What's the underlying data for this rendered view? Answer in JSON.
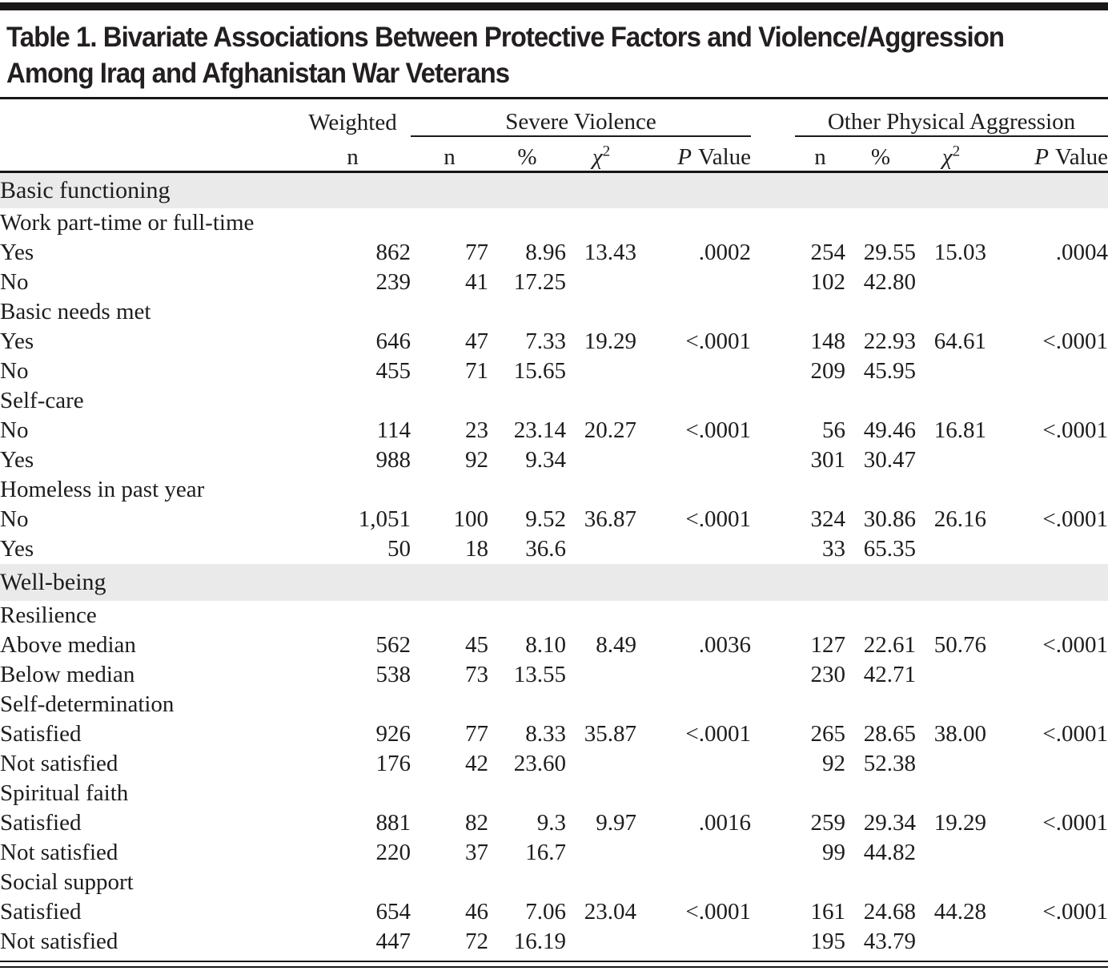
{
  "title": {
    "line1": "Table 1. Bivariate Associations Between Protective Factors and Violence/Aggression",
    "line2": "Among Iraq and Afghanistan War Veterans"
  },
  "header": {
    "weighted_label": "Weighted",
    "weighted_sub": "n",
    "groups": [
      {
        "label": "Severe Violence"
      },
      {
        "label": "Other Physical Aggression"
      }
    ],
    "sub_n": "n",
    "sub_pct": "%",
    "sub_chi": "χ",
    "sub_chi_sup": "2",
    "sub_p_italic": "P",
    "sub_p_rest": "Value"
  },
  "colors": {
    "section_band": "#eaeaea",
    "rule": "#1a1a1a",
    "text": "#1d1d1d"
  },
  "sections": [
    {
      "label": "Basic functioning",
      "rows": [
        {
          "label": "Work part-time or full-time",
          "indent": false,
          "cells": [
            "",
            "",
            "",
            "",
            "",
            "",
            "",
            "",
            ""
          ]
        },
        {
          "label": "Yes",
          "indent": true,
          "cells": [
            "862",
            "77",
            "8.96",
            "13.43",
            ".0002",
            "254",
            "29.55",
            "15.03",
            ".0004"
          ]
        },
        {
          "label": "No",
          "indent": true,
          "cells": [
            "239",
            "41",
            "17.25",
            "",
            "",
            "102",
            "42.80",
            "",
            ""
          ]
        },
        {
          "label": "Basic needs met",
          "indent": false,
          "cells": [
            "",
            "",
            "",
            "",
            "",
            "",
            "",
            "",
            ""
          ]
        },
        {
          "label": "Yes",
          "indent": true,
          "cells": [
            "646",
            "47",
            "7.33",
            "19.29",
            "<.0001",
            "148",
            "22.93",
            "64.61",
            "<.0001"
          ]
        },
        {
          "label": "No",
          "indent": true,
          "cells": [
            "455",
            "71",
            "15.65",
            "",
            "",
            "209",
            "45.95",
            "",
            ""
          ]
        },
        {
          "label": "Self-care",
          "indent": false,
          "cells": [
            "",
            "",
            "",
            "",
            "",
            "",
            "",
            "",
            ""
          ]
        },
        {
          "label": "No",
          "indent": true,
          "cells": [
            "114",
            "23",
            "23.14",
            "20.27",
            "<.0001",
            "56",
            "49.46",
            "16.81",
            "<.0001"
          ]
        },
        {
          "label": "Yes",
          "indent": true,
          "cells": [
            "988",
            "92",
            "9.34",
            "",
            "",
            "301",
            "30.47",
            "",
            ""
          ]
        },
        {
          "label": "Homeless in past year",
          "indent": false,
          "cells": [
            "",
            "",
            "",
            "",
            "",
            "",
            "",
            "",
            ""
          ]
        },
        {
          "label": "No",
          "indent": true,
          "cells": [
            "1,051",
            "100",
            "9.52",
            "36.87",
            "<.0001",
            "324",
            "30.86",
            "26.16",
            "<.0001"
          ]
        },
        {
          "label": "Yes",
          "indent": true,
          "cells": [
            "50",
            "18",
            "36.6",
            "",
            "",
            "33",
            "65.35",
            "",
            ""
          ]
        }
      ]
    },
    {
      "label": "Well-being",
      "rows": [
        {
          "label": "Resilience",
          "indent": false,
          "cells": [
            "",
            "",
            "",
            "",
            "",
            "",
            "",
            "",
            ""
          ]
        },
        {
          "label": "Above median",
          "indent": true,
          "cells": [
            "562",
            "45",
            "8.10",
            "8.49",
            ".0036",
            "127",
            "22.61",
            "50.76",
            "<.0001"
          ]
        },
        {
          "label": "Below median",
          "indent": true,
          "cells": [
            "538",
            "73",
            "13.55",
            "",
            "",
            "230",
            "42.71",
            "",
            ""
          ]
        },
        {
          "label": "Self-determination",
          "indent": false,
          "cells": [
            "",
            "",
            "",
            "",
            "",
            "",
            "",
            "",
            ""
          ]
        },
        {
          "label": "Satisfied",
          "indent": true,
          "cells": [
            "926",
            "77",
            "8.33",
            "35.87",
            "<.0001",
            "265",
            "28.65",
            "38.00",
            "<.0001"
          ]
        },
        {
          "label": "Not satisfied",
          "indent": true,
          "cells": [
            "176",
            "42",
            "23.60",
            "",
            "",
            "92",
            "52.38",
            "",
            ""
          ]
        },
        {
          "label": "Spiritual faith",
          "indent": false,
          "cells": [
            "",
            "",
            "",
            "",
            "",
            "",
            "",
            "",
            ""
          ]
        },
        {
          "label": "Satisfied",
          "indent": true,
          "cells": [
            "881",
            "82",
            "9.3",
            "9.97",
            ".0016",
            "259",
            "29.34",
            "19.29",
            "<.0001"
          ]
        },
        {
          "label": "Not satisfied",
          "indent": true,
          "cells": [
            "220",
            "37",
            "16.7",
            "",
            "",
            "99",
            "44.82",
            "",
            ""
          ]
        },
        {
          "label": "Social support",
          "indent": false,
          "cells": [
            "",
            "",
            "",
            "",
            "",
            "",
            "",
            "",
            ""
          ]
        },
        {
          "label": "Satisfied",
          "indent": true,
          "cells": [
            "654",
            "46",
            "7.06",
            "23.04",
            "<.0001",
            "161",
            "24.68",
            "44.28",
            "<.0001"
          ]
        },
        {
          "label": "Not satisfied",
          "indent": true,
          "cells": [
            "447",
            "72",
            "16.19",
            "",
            "",
            "195",
            "43.79",
            "",
            ""
          ]
        }
      ]
    }
  ]
}
